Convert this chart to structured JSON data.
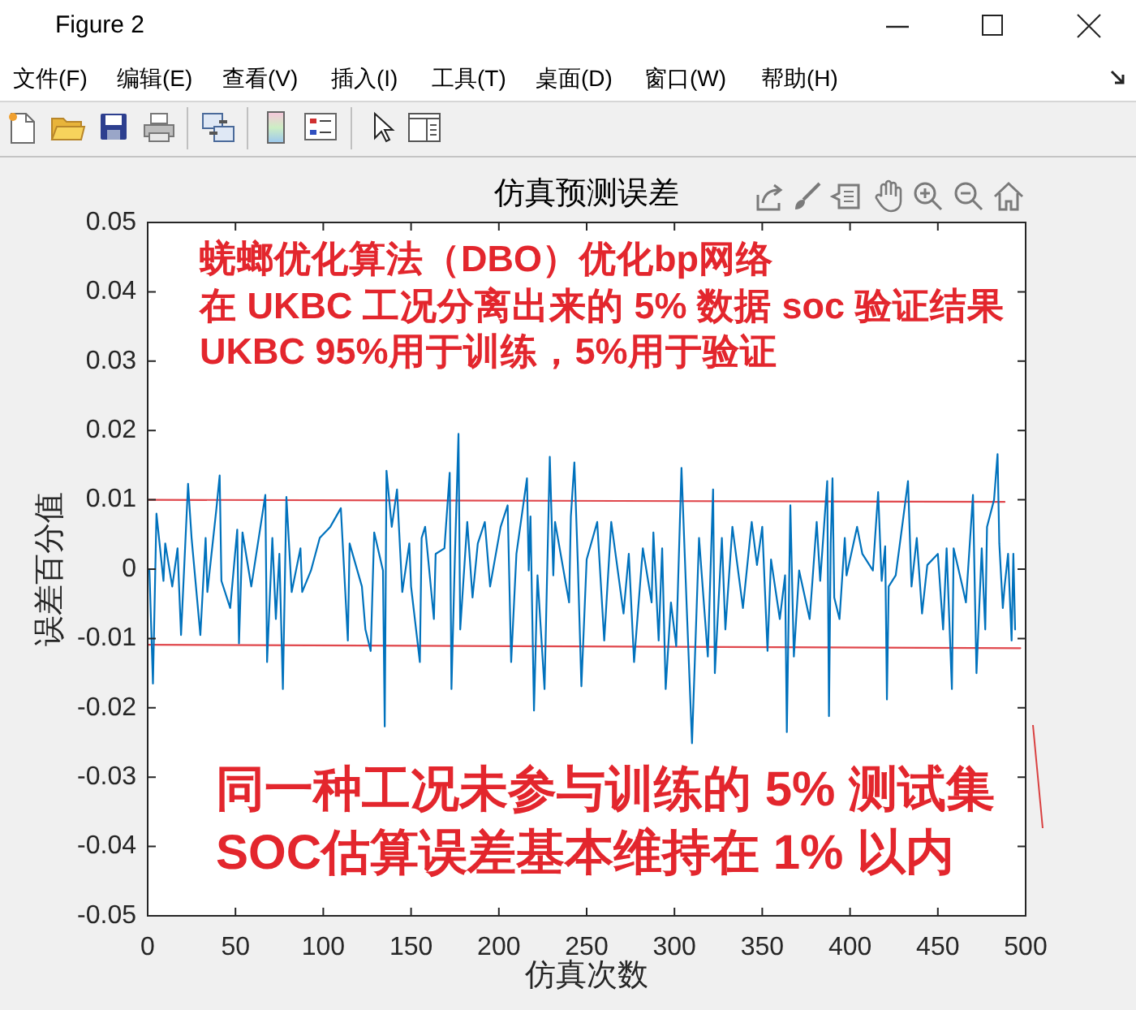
{
  "chart_data": {
    "type": "line",
    "title": "仿真预测误差",
    "xlabel": "仿真次数",
    "ylabel": "误差百分值",
    "annotations": [
      "Figure 2",
      "文件(F)",
      "编辑(E)",
      "查看(V)",
      "插入(I)",
      "工具(T)",
      "桌面(D)",
      "窗口(W)",
      "帮助(H)",
      "蜣螂优化算法（DBO）优化bp网络",
      "在 UKBC 工况分离出来的 5% 数据 soc 验证结果",
      "UKBC 95%用于训练，5%用于验证",
      "同一种工况未参与训练的 5% 测试集",
      "SOC估算误差基本维持在 1% 以内"
    ],
    "xlim": [
      0,
      500
    ],
    "ylim": [
      -0.05,
      0.05
    ],
    "xticks": [
      0,
      50,
      100,
      150,
      200,
      250,
      300,
      350,
      400,
      450,
      500
    ],
    "yticks": [
      -0.05,
      -0.04,
      -0.03,
      -0.02,
      -0.01,
      0,
      0.01,
      0.02,
      0.03,
      0.04,
      0.05
    ],
    "series": [
      {
        "color": "#0072bd",
        "x": [
          1,
          3,
          5,
          9,
          10,
          14,
          17,
          19,
          23,
          25,
          30,
          33,
          34,
          39,
          41,
          42,
          47,
          51,
          52,
          54,
          59,
          67,
          68,
          71,
          73,
          75,
          77,
          79,
          82,
          87,
          88,
          93,
          98,
          104,
          110,
          114,
          115,
          122,
          124,
          127,
          129,
          134,
          135,
          136,
          139,
          142,
          145,
          149,
          150,
          155,
          156,
          158,
          163,
          164,
          169,
          172,
          173,
          175,
          177,
          178,
          182,
          185,
          188,
          192,
          195,
          201,
          205,
          207,
          210,
          216,
          217,
          218,
          220,
          222,
          226,
          229,
          231,
          232,
          240,
          241,
          243,
          245,
          247,
          250,
          256,
          260,
          264,
          271,
          274,
          277,
          282,
          287,
          288,
          291,
          293,
          295,
          298,
          301,
          304,
          307,
          310,
          314,
          319,
          322,
          323,
          327,
          329,
          333,
          339,
          344,
          347,
          350,
          353,
          355,
          360,
          363,
          364,
          366,
          368,
          371,
          377,
          381,
          383,
          387,
          388,
          389,
          390,
          391,
          394,
          397,
          398,
          404,
          407,
          413,
          416,
          418,
          420,
          421,
          422,
          426,
          430,
          433,
          435,
          438,
          441,
          444,
          450,
          453,
          455,
          458,
          459,
          464,
          466,
          470,
          472,
          475,
          477,
          478,
          482,
          484,
          485,
          487,
          488,
          490,
          492,
          493,
          494
        ],
        "values": [
          -0.0002,
          -0.0165,
          0.008,
          -0.0017,
          0.0037,
          -0.0025,
          0.003,
          -0.0095,
          0.0123,
          0.0045,
          -0.0095,
          0.0045,
          -0.0033,
          0.0084,
          0.0135,
          -0.0017,
          -0.0056,
          0.0057,
          -0.0107,
          0.0053,
          -0.0025,
          0.0107,
          -0.0134,
          0.0045,
          -0.0072,
          0.0022,
          -0.0173,
          0.0104,
          -0.0033,
          0.003,
          -0.0033,
          -0.0002,
          0.0045,
          0.0061,
          0.0088,
          -0.0103,
          0.0037,
          -0.0025,
          -0.0087,
          -0.0118,
          0.0053,
          -0.0002,
          -0.0227,
          0.0142,
          0.0061,
          0.0115,
          -0.0033,
          0.0037,
          -0.0025,
          -0.0134,
          0.0045,
          0.0061,
          -0.0072,
          0.0022,
          0.003,
          0.0139,
          -0.0173,
          0.0022,
          0.0195,
          -0.0087,
          0.0068,
          -0.0041,
          0.0037,
          0.0068,
          -0.0025,
          0.0061,
          0.0092,
          -0.0134,
          0.0022,
          0.0131,
          -0.0002,
          0.0076,
          -0.0204,
          -0.0009,
          -0.0173,
          0.0162,
          -0.0009,
          0.0068,
          -0.0048,
          0.0076,
          0.0154,
          0.0006,
          -0.0169,
          0.0014,
          0.0068,
          -0.0103,
          0.0068,
          -0.0064,
          0.0022,
          -0.0134,
          0.003,
          -0.0048,
          0.0053,
          -0.0103,
          0.003,
          -0.0173,
          -0.0048,
          -0.0111,
          0.0146,
          -0.0056,
          -0.0251,
          0.0045,
          -0.0126,
          0.0115,
          -0.015,
          0.0045,
          -0.0087,
          0.0061,
          -0.0056,
          0.0068,
          0.0006,
          0.0061,
          -0.0118,
          0.0014,
          -0.0072,
          -0.0009,
          -0.0235,
          0.0092,
          -0.0126,
          -0.0002,
          -0.0072,
          0.0068,
          -0.0017,
          0.0127,
          -0.0212,
          0.0037,
          0.0131,
          -0.0041,
          -0.0072,
          0.0045,
          -0.0009,
          0.0061,
          0.0022,
          -0.0002,
          0.0111,
          -0.0017,
          0.0033,
          -0.0188,
          -0.0025,
          -0.0009,
          0.0068,
          0.0127,
          -0.0025,
          0.0045,
          -0.0064,
          0.0006,
          0.0022,
          -0.0087,
          0.003,
          -0.0173,
          0.003,
          -0.0025,
          -0.0048,
          0.0107,
          -0.015,
          0.003,
          -0.0087,
          0.0061,
          0.01,
          0.0166,
          0.0037,
          -0.0056,
          -0.0025,
          0.0022,
          -0.0103,
          0.0022,
          -0.0087
        ]
      },
      {
        "color": "#e0474c",
        "x": [
          0,
          488
        ],
        "values": [
          0.01,
          0.0097
        ]
      },
      {
        "color": "#e0474c",
        "x": [
          0,
          497
        ],
        "values": [
          -0.0109,
          -0.0114
        ]
      }
    ]
  }
}
